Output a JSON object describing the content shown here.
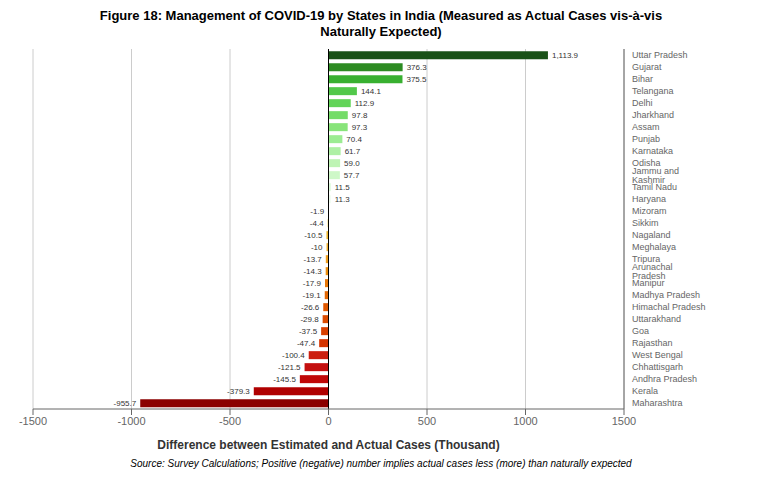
{
  "chart_data": {
    "type": "bar",
    "orientation": "horizontal",
    "title": "Figure 18: Management of COVID-19 by States in India (Measured as Actual Cases vis-à-vis\nNaturally Expected)",
    "xlabel": "Difference between Estimated and Actual Cases (Thousand)",
    "annotations": [
      "Source: Survey Calculations; Positive (negative) number implies actual cases less (more) than naturally expected"
    ],
    "categories": [
      "Uttar Pradesh",
      "Gujarat",
      "Bihar",
      "Telangana",
      "Delhi",
      "Jharkhand",
      "Assam",
      "Punjab",
      "Karnataka",
      "Odisha",
      "Jammu and Kashmir",
      "Tamil Nadu",
      "Haryana",
      "Mizoram",
      "Sikkim",
      "Nagaland",
      "Meghalaya",
      "Tripura",
      "Arunachal Pradesh",
      "Manipur",
      "Madhya Pradesh",
      "Himachal Pradesh",
      "Uttarakhand",
      "Goa",
      "Rajasthan",
      "West Bengal",
      "Chhattisgarh",
      "Andhra Pradesh",
      "Kerala",
      "Maharashtra"
    ],
    "values": [
      1113.9,
      376.3,
      375.5,
      144.1,
      112.9,
      97.8,
      97.3,
      70.4,
      61.7,
      59.0,
      57.7,
      11.5,
      11.3,
      -1.9,
      -4.4,
      -10.5,
      -10.0,
      -13.7,
      -14.3,
      -17.9,
      -19.1,
      -26.6,
      -29.8,
      -37.5,
      -47.4,
      -100.4,
      -121.5,
      -145.5,
      -379.3,
      -955.7
    ],
    "value_labels": [
      "1,113.9",
      "376.3",
      "375.5",
      "144.1",
      "112.9",
      "97.8",
      "97.3",
      "70.4",
      "61.7",
      "59.0",
      "57.7",
      "11.5",
      "11.3",
      "-1.9",
      "-4.4",
      "-10.5",
      "-10",
      "-13.7",
      "-14.3",
      "-17.9",
      "-19.1",
      "-26.6",
      "-29.8",
      "-37.5",
      "-47.4",
      "-100.4",
      "-121.5",
      "-145.5",
      "-379.3",
      "-955.7"
    ],
    "colors": [
      "#1a5218",
      "#2d8b22",
      "#38b030",
      "#52c84a",
      "#62d458",
      "#74dc68",
      "#88e47a",
      "#9cec92",
      "#aef0a4",
      "#bef4b4",
      "#cef8c8",
      "#ddfcdc",
      "#eefcee",
      "#f5e070",
      "#f5d050",
      "#f0b830",
      "#f0b030",
      "#f0a020",
      "#ec9010",
      "#e87808",
      "#e46804",
      "#e05800",
      "#dc4c00",
      "#d84000",
      "#d43400",
      "#cc2010",
      "#c41010",
      "#c00808",
      "#b00000",
      "#8b0000"
    ],
    "xlim": [
      -1500,
      1500
    ],
    "xticks": [
      -1500,
      -1000,
      -500,
      0,
      500,
      1000,
      1500
    ],
    "grid": true,
    "data_labels": true
  }
}
